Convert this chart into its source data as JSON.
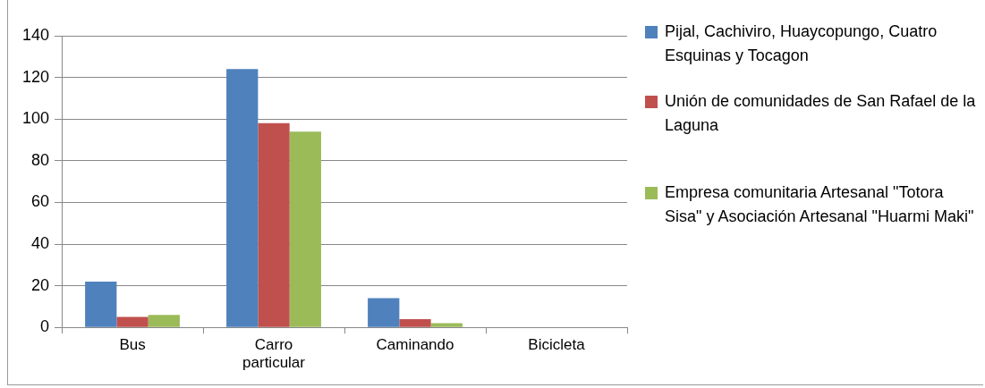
{
  "chart_data": {
    "type": "bar",
    "categories": [
      "Bus",
      "Carro particular",
      "Caminando",
      "Bicicleta"
    ],
    "series": [
      {
        "name": "Pijal, Cachiviro, Huaycopungo, Cuatro Esquinas y Tocagon",
        "color": "#4f81bd",
        "values": [
          22,
          124,
          14,
          0
        ]
      },
      {
        "name": "Unión de comunidades de San Rafael de la Laguna",
        "color": "#c0504d",
        "values": [
          5,
          98,
          4,
          0
        ]
      },
      {
        "name": "Empresa comunitaria Artesanal \"Totora Sisa\" y Asociación Artesanal \"Huarmi Maki\"",
        "color": "#9bbb59",
        "values": [
          6,
          94,
          2,
          0
        ]
      }
    ],
    "ylim": [
      0,
      140
    ],
    "yticks": [
      0,
      20,
      40,
      60,
      80,
      100,
      120,
      140
    ],
    "grid": "y",
    "legend": "right"
  }
}
